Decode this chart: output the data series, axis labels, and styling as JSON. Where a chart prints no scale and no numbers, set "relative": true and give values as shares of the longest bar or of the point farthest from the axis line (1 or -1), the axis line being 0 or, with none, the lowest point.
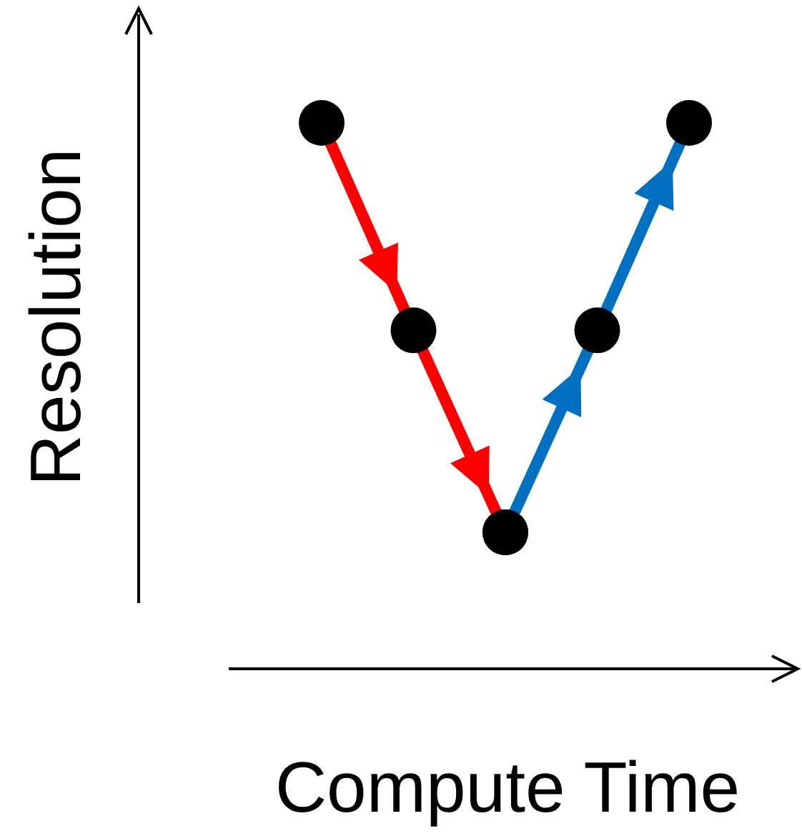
{
  "chart_data": {
    "type": "line",
    "relative": true,
    "xlabel": "Compute Time",
    "ylabel": "Resolution",
    "categories": [
      null,
      null,
      null,
      null,
      null
    ],
    "marker": "circle",
    "series": [
      {
        "color": "#ff0000",
        "values": [
          1,
          0.62,
          0.25,
          null,
          null
        ]
      },
      {
        "color": "#0070c0",
        "values": [
          null,
          null,
          0.25,
          0.62,
          1
        ]
      }
    ]
  }
}
